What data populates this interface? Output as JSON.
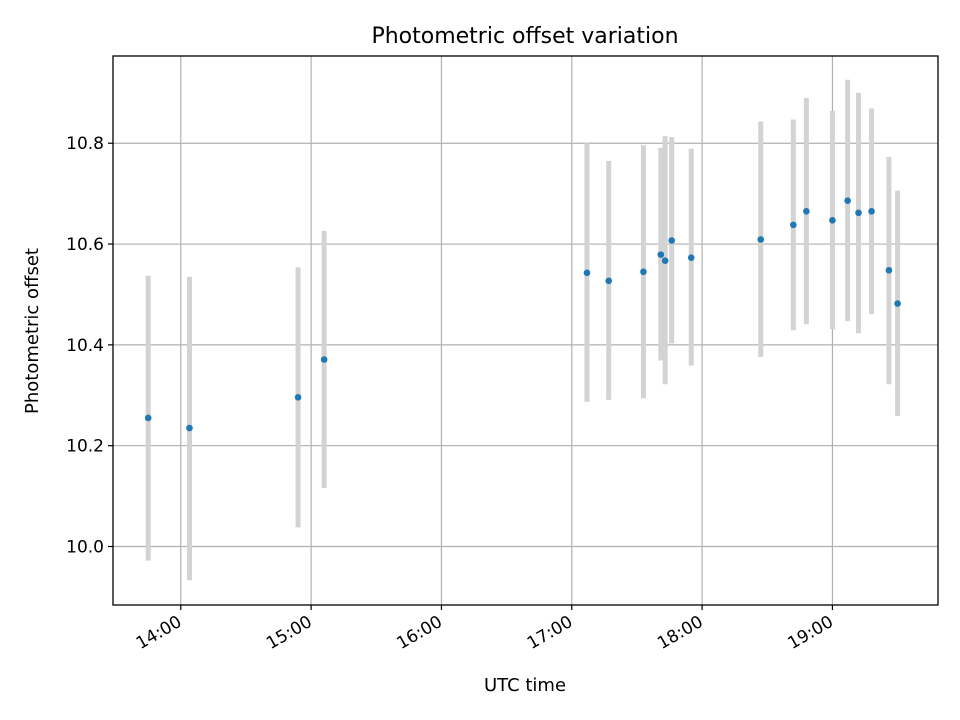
{
  "chart_data": {
    "type": "scatter",
    "title": "Photometric offset variation",
    "xlabel": "UTC time",
    "ylabel": "Photometric offset",
    "x_ticks": [
      "14:00",
      "15:00",
      "16:00",
      "17:00",
      "18:00",
      "19:00"
    ],
    "x_tick_hours": [
      14,
      15,
      16,
      17,
      18,
      19
    ],
    "xlim_hours": [
      13.48,
      19.81
    ],
    "y_ticks": [
      "10.0",
      "10.2",
      "10.4",
      "10.6",
      "10.8"
    ],
    "y_tick_values": [
      10.0,
      10.2,
      10.4,
      10.6,
      10.8
    ],
    "ylim": [
      9.884,
      10.973
    ],
    "grid": true,
    "point_color": "#1f77b4",
    "errorbar_color": "#d3d3d3",
    "series": [
      {
        "x": [
          "13:45",
          "14:04",
          "14:54",
          "15:06",
          "17:07",
          "17:17",
          "17:33",
          "17:41",
          "17:43",
          "17:46",
          "17:55",
          "18:27",
          "18:42",
          "18:48",
          "19:00",
          "19:07",
          "19:12",
          "19:18",
          "19:26",
          "19:30"
        ],
        "y": [
          10.255,
          10.235,
          10.296,
          10.371,
          10.543,
          10.527,
          10.545,
          10.579,
          10.567,
          10.607,
          10.573,
          10.609,
          10.638,
          10.665,
          10.647,
          10.686,
          10.662,
          10.665,
          10.548,
          10.482
        ],
        "yerr_low": [
          9.972,
          9.933,
          10.038,
          10.116,
          10.287,
          10.291,
          10.294,
          10.369,
          10.322,
          10.403,
          10.359,
          10.376,
          10.429,
          10.441,
          10.431,
          10.447,
          10.423,
          10.461,
          10.322,
          10.259
        ],
        "yerr_high": [
          10.537,
          10.535,
          10.554,
          10.626,
          10.8,
          10.765,
          10.796,
          10.791,
          10.814,
          10.812,
          10.789,
          10.843,
          10.847,
          10.89,
          10.864,
          10.926,
          10.9,
          10.869,
          10.773,
          10.706
        ]
      }
    ]
  }
}
